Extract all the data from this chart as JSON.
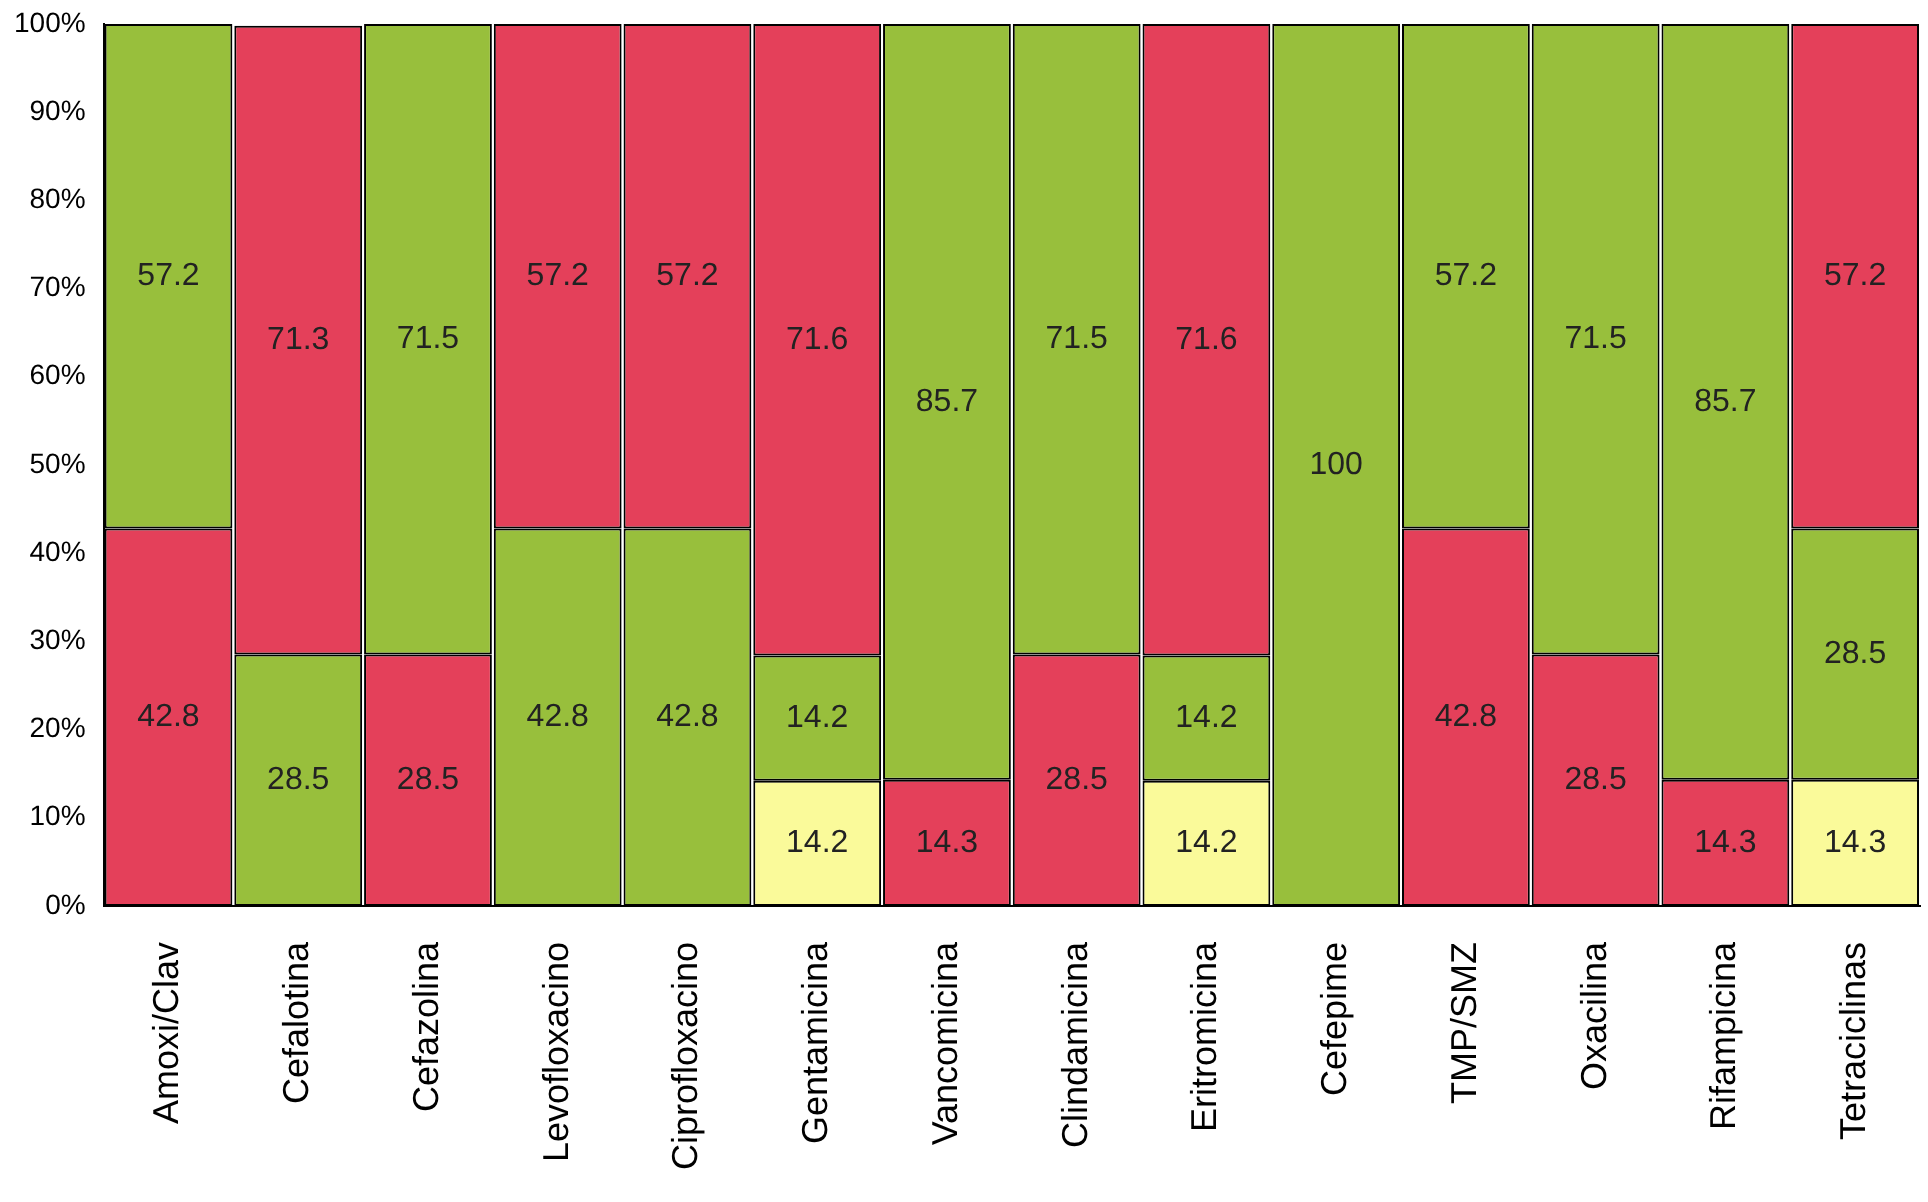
{
  "chart_data": {
    "type": "bar",
    "stacked": true,
    "data_labels": true,
    "categories": [
      "Amoxi/Clav",
      "Cefalotina",
      "Cefazolina",
      "Levofloxacino",
      "Ciprofloxacino",
      "Gentamicina",
      "Vancomicina",
      "Clindamicina",
      "Eritromicina",
      "Cefepime",
      "TMP/SMZ",
      "Oxacilina",
      "Rifampicina",
      "Tetraciclinas"
    ],
    "series": [
      {
        "values": [
          42.8,
          28.5,
          28.5,
          42.8,
          42.8,
          14.2,
          14.3,
          28.5,
          14.2,
          100,
          42.8,
          28.5,
          14.3,
          14.3
        ],
        "colors": [
          "#e4405a",
          "#98bf3c",
          "#e4405a",
          "#98bf3c",
          "#98bf3c",
          "#fafa9a",
          "#e4405a",
          "#e4405a",
          "#fafa9a",
          "#98bf3c",
          "#e4405a",
          "#e4405a",
          "#e4405a",
          "#fafa9a"
        ]
      },
      {
        "values": [
          null,
          null,
          null,
          null,
          null,
          14.2,
          null,
          null,
          14.2,
          null,
          null,
          null,
          null,
          28.5
        ],
        "colors": [
          "#98bf3c",
          "#98bf3c",
          "#98bf3c",
          "#98bf3c",
          "#98bf3c",
          "#98bf3c",
          "#98bf3c",
          "#98bf3c",
          "#98bf3c",
          "#98bf3c",
          "#98bf3c",
          "#98bf3c",
          "#98bf3c",
          "#98bf3c"
        ]
      },
      {
        "values": [
          57.2,
          71.3,
          71.5,
          57.2,
          57.2,
          71.6,
          85.7,
          71.5,
          71.6,
          null,
          57.2,
          71.5,
          85.7,
          57.2
        ],
        "colors": [
          "#98bf3c",
          "#e4405a",
          "#98bf3c",
          "#e4405a",
          "#e4405a",
          "#e4405a",
          "#98bf3c",
          "#98bf3c",
          "#e4405a",
          "#98bf3c",
          "#98bf3c",
          "#98bf3c",
          "#98bf3c",
          "#e4405a"
        ]
      }
    ],
    "ylim": [
      0,
      100
    ],
    "yticks": [
      {
        "value": 0,
        "label": "0%"
      },
      {
        "value": 10,
        "label": "10%"
      },
      {
        "value": 20,
        "label": "20%"
      },
      {
        "value": 30,
        "label": "30%"
      },
      {
        "value": 40,
        "label": "40%"
      },
      {
        "value": 50,
        "label": "50%"
      },
      {
        "value": 60,
        "label": "60%"
      },
      {
        "value": 70,
        "label": "70%"
      },
      {
        "value": 80,
        "label": "80%"
      },
      {
        "value": 90,
        "label": "90%"
      },
      {
        "value": 100,
        "label": "100%"
      }
    ]
  }
}
